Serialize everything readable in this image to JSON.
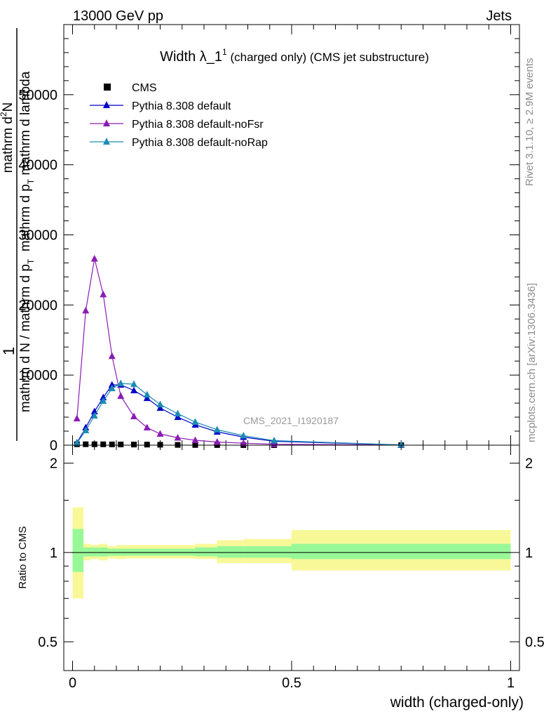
{
  "header": {
    "left": "13000 GeV pp",
    "right": "Jets"
  },
  "side": {
    "rivet": "Rivet 3.1.10, ≥ 2.9M events",
    "mcplots": "mcplots.cern.ch [arXiv:1306.3436]"
  },
  "chart_data": [
    {
      "type": "line",
      "title": "Width λ_1¹ (charged only) (CMS jet substructure)",
      "title_parts": {
        "main": "Width λ_1",
        "sup": "1",
        "rest": " (charged only) (CMS jet substructure)"
      },
      "watermark": "CMS_2021_I1920187",
      "ylabel_lines": [
        "1",
        "mathrm d N / mathrm d p_T",
        "mathrm d^2N",
        "mathrm d p_T mathrm d lambda"
      ],
      "ylabel_parts": {
        "one": "1",
        "frac1_denominator": "mathrm d N / mathrm d p",
        "frac1_sub": "T",
        "frac2_numerator": "mathrm d",
        "frac2_numerator_sup": "2",
        "frac2_numerator_tail": "N",
        "frac2_denominator": "mathrm d p",
        "frac2_denominator_sub": "T",
        "frac2_denominator_tail": " mathrm d lambda"
      },
      "xlabel": "width (charged-only)",
      "xlim": [
        -0.02,
        1.02
      ],
      "ylim": [
        0,
        60000
      ],
      "xticks": [
        0,
        0.5,
        1
      ],
      "xtick_labels": [
        "0",
        "0.5",
        "1"
      ],
      "yticks": [
        0,
        10000,
        20000,
        30000,
        40000,
        50000
      ],
      "ytick_labels": [
        "0",
        "10000",
        "20000",
        "30000",
        "40000",
        "50000"
      ],
      "grid": false,
      "legend_position": "top-left",
      "series": [
        {
          "name": "CMS",
          "color": "#000000",
          "marker": "square",
          "x": [
            0.01,
            0.03,
            0.05,
            0.07,
            0.09,
            0.11,
            0.14,
            0.17,
            0.2,
            0.24,
            0.28,
            0.33,
            0.39,
            0.46,
            0.75
          ],
          "y": [
            130,
            130,
            130,
            120,
            110,
            100,
            90,
            80,
            60,
            40,
            25,
            15,
            8,
            4,
            0
          ]
        },
        {
          "name": "Pythia 8.308 default",
          "color": "#0000c8",
          "marker": "triangle",
          "x": [
            0.01,
            0.03,
            0.05,
            0.07,
            0.09,
            0.11,
            0.14,
            0.17,
            0.2,
            0.24,
            0.28,
            0.33,
            0.39,
            0.46,
            0.75
          ],
          "y": [
            350,
            2500,
            4800,
            6800,
            8600,
            8600,
            7800,
            6700,
            5300,
            4000,
            2900,
            1900,
            1150,
            550,
            30
          ]
        },
        {
          "name": "Pythia 8.308 default-noFsr",
          "color": "#8c1cb4",
          "marker": "triangle",
          "x": [
            0.01,
            0.03,
            0.05,
            0.07,
            0.09,
            0.11,
            0.14,
            0.17,
            0.2,
            0.24,
            0.28,
            0.33,
            0.39,
            0.46,
            0.75
          ],
          "y": [
            3800,
            19200,
            26600,
            21500,
            12700,
            7000,
            4100,
            2500,
            1600,
            1050,
            700,
            450,
            280,
            130,
            10
          ]
        },
        {
          "name": "Pythia 8.308 default-noRap",
          "color": "#1c8cb4",
          "marker": "triangle",
          "x": [
            0.01,
            0.03,
            0.05,
            0.07,
            0.09,
            0.11,
            0.14,
            0.17,
            0.2,
            0.24,
            0.28,
            0.33,
            0.39,
            0.46,
            0.75
          ],
          "y": [
            300,
            2100,
            4200,
            6300,
            8100,
            8800,
            8700,
            7200,
            5800,
            4500,
            3300,
            2200,
            1350,
            650,
            40
          ]
        }
      ]
    },
    {
      "type": "area",
      "ylabel": "Ratio to CMS",
      "xlim": [
        -0.02,
        1.02
      ],
      "ylim": [
        0.4,
        2.3
      ],
      "yscale": "log",
      "xticks": [
        0,
        0.5,
        1
      ],
      "xtick_labels": [
        "0",
        "0.5",
        "1"
      ],
      "yticks": [
        0.5,
        1,
        2
      ],
      "ytick_labels": [
        "0.5",
        "1",
        "2"
      ],
      "reference_line": 1,
      "band_colors": {
        "inner": "#98f898",
        "outer": "#f8f898"
      },
      "bin_edges": [
        0,
        0.025,
        0.04,
        0.06,
        0.08,
        0.1,
        0.12,
        0.16,
        0.2,
        0.24,
        0.28,
        0.33,
        0.39,
        0.5,
        1.0
      ],
      "inner_band": {
        "low": [
          0.86,
          0.97,
          0.97,
          0.97,
          0.975,
          0.975,
          0.975,
          0.975,
          0.975,
          0.975,
          0.97,
          0.96,
          0.96,
          0.95
        ],
        "high": [
          1.2,
          1.04,
          1.04,
          1.04,
          1.03,
          1.03,
          1.03,
          1.03,
          1.03,
          1.03,
          1.04,
          1.05,
          1.05,
          1.07
        ]
      },
      "outer_band": {
        "low": [
          0.7,
          0.94,
          0.95,
          0.94,
          0.955,
          0.95,
          0.955,
          0.955,
          0.955,
          0.955,
          0.95,
          0.92,
          0.92,
          0.87
        ],
        "high": [
          1.42,
          1.07,
          1.06,
          1.07,
          1.05,
          1.06,
          1.06,
          1.06,
          1.06,
          1.06,
          1.07,
          1.1,
          1.11,
          1.19
        ]
      }
    }
  ]
}
